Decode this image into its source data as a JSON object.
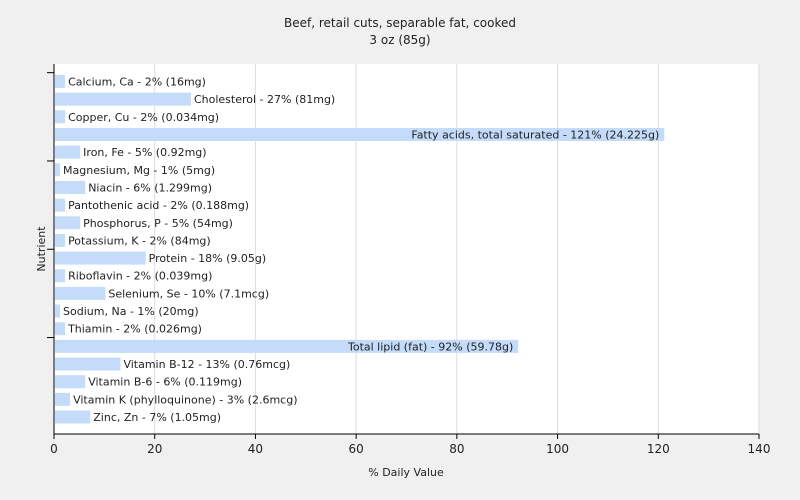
{
  "chart_data": {
    "type": "bar",
    "orientation": "horizontal",
    "title": "Beef, retail cuts, separable fat, cooked",
    "subtitle": "3 oz (85g)",
    "xlabel": "% Daily Value",
    "ylabel": "Nutrient",
    "xlim": [
      0,
      140
    ],
    "xticks": [
      "0",
      "20",
      "40",
      "60",
      "80",
      "100",
      "120",
      "140"
    ],
    "grid": true,
    "bar_color": "#c4dcfa",
    "categories": [
      "Calcium, Ca",
      "Cholesterol",
      "Copper, Cu",
      "Fatty acids, total saturated",
      "Iron, Fe",
      "Magnesium, Mg",
      "Niacin",
      "Pantothenic acid",
      "Phosphorus, P",
      "Potassium, K",
      "Protein",
      "Riboflavin",
      "Selenium, Se",
      "Sodium, Na",
      "Thiamin",
      "Total lipid (fat)",
      "Vitamin B-12",
      "Vitamin B-6",
      "Vitamin K (phylloquinone)",
      "Zinc, Zn"
    ],
    "values": [
      2,
      27,
      2,
      121,
      5,
      1,
      6,
      2,
      5,
      2,
      18,
      2,
      10,
      1,
      2,
      92,
      13,
      6,
      3,
      7
    ],
    "labels": [
      "Calcium, Ca - 2% (16mg)",
      "Cholesterol - 27% (81mg)",
      "Copper, Cu - 2% (0.034mg)",
      "Fatty acids, total saturated - 121% (24.225g)",
      "Iron, Fe - 5% (0.92mg)",
      "Magnesium, Mg - 1% (5mg)",
      "Niacin - 6% (1.299mg)",
      "Pantothenic acid - 2% (0.188mg)",
      "Phosphorus, P - 5% (54mg)",
      "Potassium, K - 2% (84mg)",
      "Protein - 18% (9.05g)",
      "Riboflavin - 2% (0.039mg)",
      "Selenium, Se - 10% (7.1mcg)",
      "Sodium, Na - 1% (20mg)",
      "Thiamin - 2% (0.026mg)",
      "Total lipid (fat) - 92% (59.78g)",
      "Vitamin B-12 - 13% (0.76mcg)",
      "Vitamin B-6 - 6% (0.119mg)",
      "Vitamin K (phylloquinone) - 3% (2.6mcg)",
      "Zinc, Zn - 7% (1.05mg)"
    ]
  }
}
